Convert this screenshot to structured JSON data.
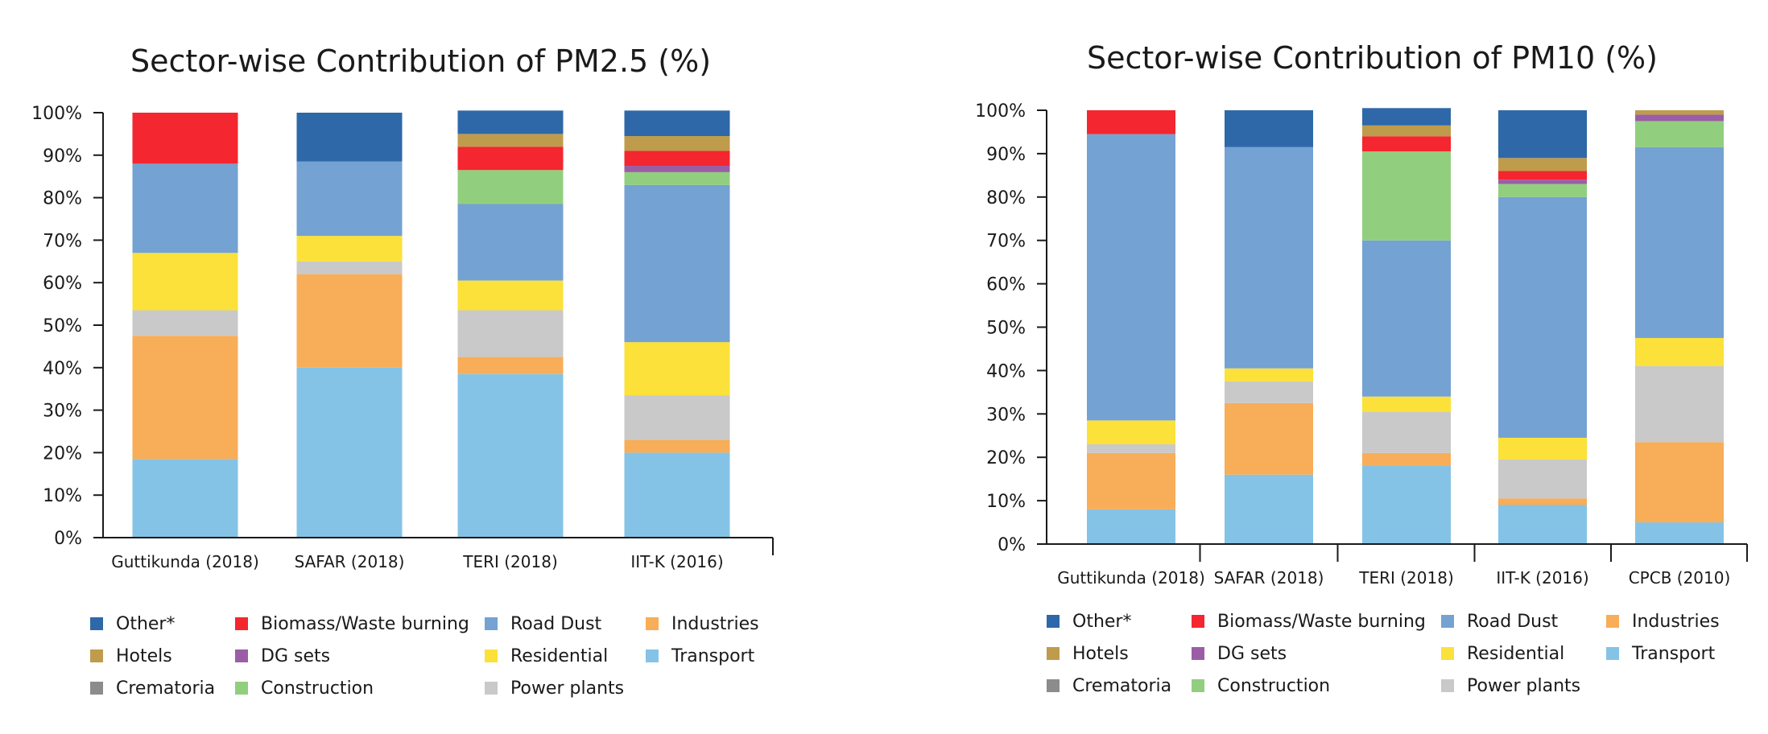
{
  "legend": [
    {
      "label": "Other*",
      "color": "#2e68a8"
    },
    {
      "label": "Biomass/Waste burning",
      "color": "#f4262f"
    },
    {
      "label": "Road Dust",
      "color": "#74a2d3"
    },
    {
      "label": "Industries",
      "color": "#f8ad58"
    },
    {
      "label": "Hotels",
      "color": "#bf9b4c"
    },
    {
      "label": "DG sets",
      "color": "#9b5ea6"
    },
    {
      "label": "Residential",
      "color": "#fbe13a"
    },
    {
      "label": "Transport",
      "color": "#84c3e6"
    },
    {
      "label": "Crematoria",
      "color": "#8c8c8c"
    },
    {
      "label": "Construction",
      "color": "#91cf7f"
    },
    {
      "label": "Power plants",
      "color": "#c9c9c9"
    }
  ],
  "chart_data": [
    {
      "type": "bar",
      "stacked": true,
      "title": "Sector-wise Contribution of PM2.5 (%)",
      "xlabel": "",
      "ylabel": "",
      "ylim": [
        0,
        100
      ],
      "yticks": [
        "0%",
        "10%",
        "20%",
        "30%",
        "40%",
        "50%",
        "60%",
        "70%",
        "80%",
        "90%",
        "100%"
      ],
      "categories": [
        "Guttikunda (2018)",
        "SAFAR (2018)",
        "TERI (2018)",
        "IIT-K (2016)"
      ],
      "series": [
        {
          "name": "Transport",
          "color": "#84c3e6",
          "values": [
            18.5,
            40,
            38.5,
            20
          ]
        },
        {
          "name": "Industries",
          "color": "#f8ad58",
          "values": [
            29,
            22,
            4,
            3
          ]
        },
        {
          "name": "Power plants",
          "color": "#c9c9c9",
          "values": [
            6,
            3,
            11,
            10.5
          ]
        },
        {
          "name": "Residential",
          "color": "#fbe13a",
          "values": [
            13.5,
            6,
            7,
            12.5
          ]
        },
        {
          "name": "Road Dust",
          "color": "#74a2d3",
          "values": [
            21,
            17.5,
            18,
            37
          ]
        },
        {
          "name": "Construction",
          "color": "#91cf7f",
          "values": [
            0,
            0,
            8,
            3
          ]
        },
        {
          "name": "DG sets",
          "color": "#9b5ea6",
          "values": [
            0,
            0,
            0,
            1.5
          ]
        },
        {
          "name": "Biomass/Waste burning",
          "color": "#f4262f",
          "values": [
            12,
            0,
            5.5,
            3.5
          ]
        },
        {
          "name": "Hotels",
          "color": "#bf9b4c",
          "values": [
            0,
            0,
            3,
            3.5
          ]
        },
        {
          "name": "Other*",
          "color": "#2e68a8",
          "values": [
            0,
            11.5,
            5.5,
            6
          ]
        }
      ]
    },
    {
      "type": "bar",
      "stacked": true,
      "title": "Sector-wise Contribution of PM10 (%)",
      "xlabel": "",
      "ylabel": "",
      "ylim": [
        0,
        100
      ],
      "yticks": [
        "0%",
        "10%",
        "20%",
        "30%",
        "40%",
        "50%",
        "60%",
        "70%",
        "80%",
        "90%",
        "100%"
      ],
      "categories": [
        "Guttikunda (2018)",
        "SAFAR (2018)",
        "TERI (2018)",
        "IIT-K (2016)",
        "CPCB (2010)"
      ],
      "series": [
        {
          "name": "Transport",
          "color": "#84c3e6",
          "values": [
            8,
            16,
            18,
            9,
            5
          ]
        },
        {
          "name": "Industries",
          "color": "#f8ad58",
          "values": [
            13,
            16.5,
            3,
            1.5,
            18.5
          ]
        },
        {
          "name": "Power plants",
          "color": "#c9c9c9",
          "values": [
            2,
            5,
            9.5,
            9,
            17.5
          ]
        },
        {
          "name": "Residential",
          "color": "#fbe13a",
          "values": [
            5.5,
            3,
            3.5,
            5,
            6.5
          ]
        },
        {
          "name": "Road Dust",
          "color": "#74a2d3",
          "values": [
            66,
            51,
            36,
            55.5,
            44
          ]
        },
        {
          "name": "Construction",
          "color": "#91cf7f",
          "values": [
            0,
            0,
            20.5,
            3,
            6
          ]
        },
        {
          "name": "DG sets",
          "color": "#9b5ea6",
          "values": [
            0,
            0,
            0,
            1,
            1.5
          ]
        },
        {
          "name": "Biomass/Waste burning",
          "color": "#f4262f",
          "values": [
            5.5,
            0,
            3.5,
            2,
            0
          ]
        },
        {
          "name": "Hotels",
          "color": "#bf9b4c",
          "values": [
            0,
            0,
            2.5,
            3,
            1
          ]
        },
        {
          "name": "Other*",
          "color": "#2e68a8",
          "values": [
            0,
            8.5,
            4,
            11,
            0
          ]
        }
      ]
    }
  ]
}
